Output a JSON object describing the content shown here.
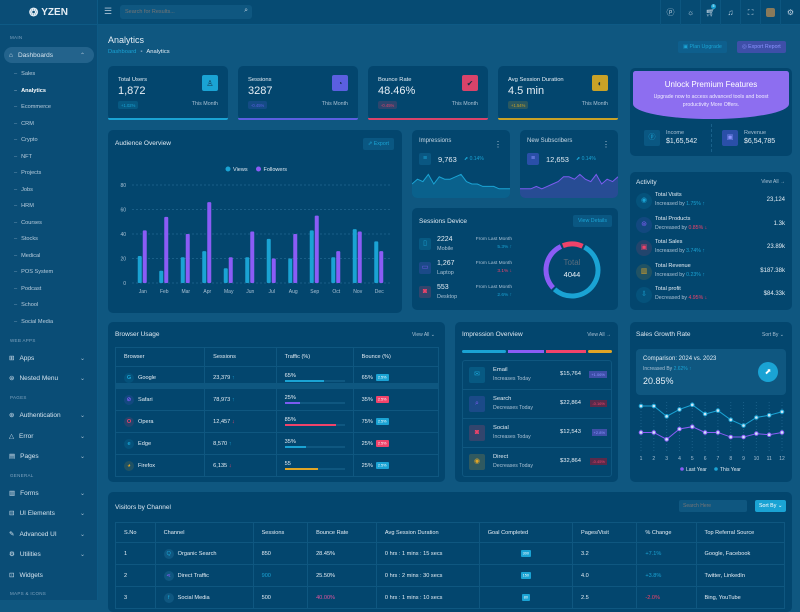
{
  "brand": {
    "name": "YZEN"
  },
  "search": {
    "placeholder": "Search for Results..."
  },
  "header": {
    "cart_badge": "5",
    "icons": [
      "help-icon",
      "sun-icon",
      "cart-icon",
      "bell-icon",
      "fullscreen-icon",
      "avatar",
      "gear-icon"
    ]
  },
  "sidebar": {
    "main_label": "MAIN",
    "dashboards": "Dashboards",
    "sub_items": [
      "Sales",
      "Analytics",
      "Ecommerce",
      "CRM",
      "Crypto",
      "NFT",
      "Projects",
      "Jobs",
      "HRM",
      "Courses",
      "Stocks",
      "Medical",
      "POS System",
      "Podcast",
      "School",
      "Social Media"
    ],
    "active_sub": "Analytics",
    "web_apps_label": "WEB APPS",
    "pages_label": "PAGES",
    "general_label": "GENERAL",
    "maps_label": "MAPS & ICONS",
    "groups": [
      {
        "label": "Apps",
        "icon": "grid-icon"
      },
      {
        "label": "Nested Menu",
        "icon": "layers-icon"
      },
      {
        "label": "Authentication",
        "icon": "user-icon"
      },
      {
        "label": "Error",
        "icon": "warning-icon"
      },
      {
        "label": "Pages",
        "icon": "file-icon"
      },
      {
        "label": "Forms",
        "icon": "form-icon"
      },
      {
        "label": "UI Elements",
        "icon": "box-icon"
      },
      {
        "label": "Advanced UI",
        "icon": "pen-icon"
      },
      {
        "label": "Utilities",
        "icon": "tool-icon"
      },
      {
        "label": "Widgets",
        "icon": "gift-icon"
      }
    ]
  },
  "page": {
    "title": "Analytics",
    "breadcrumb": [
      "Dashboard",
      "Analytics"
    ],
    "plan_upgrade": "Plan Upgrade",
    "export_report": "Export Report"
  },
  "stats": [
    {
      "label": "Total Users",
      "value": "1,872",
      "change": "+1.02%",
      "period": "This Month",
      "color": "#1aa3d4",
      "icon": "user-icon"
    },
    {
      "label": "Sessions",
      "value": "3287",
      "change": "-0.45%",
      "period": "This Month",
      "color": "#5b5fe0",
      "icon": "stopwatch-icon"
    },
    {
      "label": "Bounce Rate",
      "value": "48.46%",
      "change": "-0.45%",
      "period": "This Month",
      "color": "#d9436a",
      "icon": "check-circle-icon"
    },
    {
      "label": "Avg Session Duration",
      "value": "4.5 min",
      "change": "+1.54%",
      "period": "This Month",
      "color": "#c9a227",
      "icon": "clock-icon"
    }
  ],
  "premium": {
    "title": "Unlock Premium Features",
    "text": "Upgrade now to access advanced tools and boost productivity More Offers.",
    "income_label": "Income",
    "income": "$1,65,542",
    "revenue_label": "Revenue",
    "revenue": "$6,54,785"
  },
  "audience": {
    "title": "Audience Overview",
    "export": "Export"
  },
  "impressions": {
    "title": "Impressions",
    "value": "9,763",
    "change": "0.14%"
  },
  "subscribers": {
    "title": "New Subscribers",
    "value": "12,653",
    "change": "0.14%"
  },
  "sessions_device": {
    "title": "Sessions Device",
    "view_details": "View Details",
    "total_label": "Total",
    "total": "4044",
    "devices": [
      {
        "value": "2224",
        "name": "Mobile",
        "from": "From Last Month",
        "change": "5.3%",
        "dir": "up",
        "color": "#1aa3d4",
        "icon": "mobile-icon"
      },
      {
        "value": "1,267",
        "name": "Laptop",
        "from": "From Last Month",
        "change": "3.1%",
        "dir": "down",
        "color": "#7b5cf0",
        "icon": "laptop-icon"
      },
      {
        "value": "553",
        "name": "Desktop",
        "from": "From Last Month",
        "change": "2.6%",
        "dir": "up",
        "color": "#f0436a",
        "icon": "desktop-icon"
      }
    ]
  },
  "activity": {
    "title": "Activity",
    "view_all": "View All →",
    "items": [
      {
        "title": "Total Visits",
        "sub": "Increased by",
        "pct": "1.75%",
        "dir": "up",
        "value": "23,124",
        "color": "#1aa3d4"
      },
      {
        "title": "Total Products",
        "sub": "Decreased by",
        "pct": "0.85%",
        "dir": "down",
        "value": "1.3k",
        "color": "#7b5cf0"
      },
      {
        "title": "Total Sales",
        "sub": "Increased by",
        "pct": "3.74%",
        "dir": "up",
        "value": "23.89k",
        "color": "#f0436a"
      },
      {
        "title": "Total Revenue",
        "sub": "Increased by",
        "pct": "0.23%",
        "dir": "up",
        "value": "$187.38k",
        "color": "#e0a526"
      },
      {
        "title": "Total profit",
        "sub": "Decreased by",
        "pct": "4.95%",
        "dir": "down",
        "value": "$84.33k",
        "color": "#1aa3d4"
      }
    ]
  },
  "browser": {
    "title": "Browser Usage",
    "view_all": "View All",
    "headers": [
      "Browser",
      "Sessions",
      "Traffic (%)",
      "Bounce (%)"
    ],
    "rows": [
      {
        "name": "Google",
        "sessions": "23,379",
        "dir": "up",
        "traffic": "65%",
        "traffic_pct": 65,
        "bar": "#1aa3d4",
        "bounce": "65%",
        "badge": "2.5%",
        "badge_color": "#1aa3d4"
      },
      {
        "name": "Safari",
        "sessions": "78,973",
        "dir": "up",
        "traffic": "25%",
        "traffic_pct": 25,
        "bar": "#7b5cf0",
        "bounce": "35%",
        "badge": "2.5%",
        "badge_color": "#f0436a"
      },
      {
        "name": "Opera",
        "sessions": "12,457",
        "dir": "down",
        "traffic": "85%",
        "traffic_pct": 85,
        "bar": "#f0436a",
        "bounce": "75%",
        "badge": "2.5%",
        "badge_color": "#1aa3d4"
      },
      {
        "name": "Edge",
        "sessions": "8,570",
        "dir": "up",
        "traffic": "35%",
        "traffic_pct": 35,
        "bar": "#1aa3d4",
        "bounce": "25%",
        "badge": "2.5%",
        "badge_color": "#f0436a"
      },
      {
        "name": "Firefox",
        "sessions": "6,135",
        "dir": "down",
        "traffic": "55",
        "traffic_pct": 55,
        "bar": "#e0a526",
        "bounce": "25%",
        "badge": "2.5%",
        "badge_color": "#1aa3d4"
      }
    ]
  },
  "impression_overview": {
    "title": "Impression Overview",
    "view_all": "View All →",
    "items": [
      {
        "name": "Email",
        "sub": "Increases Today",
        "value": "$15,764",
        "badge": "+1.06%",
        "color": "#1aa3d4"
      },
      {
        "name": "Search",
        "sub": "Decreases Today",
        "value": "$22,864",
        "badge": "-0.16%",
        "color": "#7b5cf0"
      },
      {
        "name": "Social",
        "sub": "Increases Today",
        "value": "$12,543",
        "badge": "+2.8%",
        "color": "#f0436a"
      },
      {
        "name": "Direct",
        "sub": "Decreases Today",
        "value": "$32,864",
        "badge": "-0.45%",
        "color": "#e0a526"
      }
    ]
  },
  "sales_growth": {
    "title": "Sales Growth Rate",
    "sort_by": "Sort By",
    "comparison": "Comparison: 2024 vs. 2023",
    "increased_by": "Increased By",
    "increase": "2.62%",
    "value": "20.85%"
  },
  "visitors": {
    "title": "Visitors by Channel",
    "search_placeholder": "Search Here",
    "sort_by": "Sort By",
    "headers": [
      "S.No",
      "Channel",
      "Sessions",
      "Bounce Rate",
      "Avg Session Duration",
      "Goal Completed",
      "Pages/Visit",
      "% Change",
      "Top Referral Source"
    ],
    "rows": [
      {
        "no": "1",
        "channel": "Organic Search",
        "sessions": "850",
        "bounce": "28.45%",
        "duration": "0 hrs : 1 mins : 15 secs",
        "goal": "300",
        "pages": "3.2",
        "change": "+7.1%",
        "source": "Google, Facebook"
      },
      {
        "no": "2",
        "channel": "Direct Traffic",
        "sessions": "900",
        "bounce": "25.50%",
        "duration": "0 hrs : 2 mins : 30 secs",
        "goal": "150",
        "pages": "4.0",
        "change": "+3.8%",
        "source": "Twitter, LinkedIn"
      },
      {
        "no": "3",
        "channel": "Social Media",
        "sessions": "500",
        "bounce": "40.00%",
        "duration": "0 hrs : 1 mins : 10 secs",
        "goal": "80",
        "pages": "2.5",
        "change": "-2.0%",
        "source": "Bing, YouTube"
      }
    ]
  },
  "chart_data": [
    {
      "type": "bar",
      "categories": [
        "Jan",
        "Feb",
        "Mar",
        "Apr",
        "May",
        "Jun",
        "Jul",
        "Aug",
        "Sep",
        "Oct",
        "Nov",
        "Dec"
      ],
      "series": [
        {
          "name": "Views",
          "color": "#1aa3d4",
          "values": [
            22,
            10,
            21,
            26,
            12,
            21,
            36,
            20,
            43,
            21,
            44,
            34
          ]
        },
        {
          "name": "Followers",
          "color": "#8b5cf6",
          "values": [
            43,
            54,
            40,
            66,
            21,
            42,
            20,
            40,
            55,
            26,
            42,
            26
          ]
        }
      ],
      "yticks": [
        0,
        20,
        40,
        60,
        80
      ],
      "ylim": [
        0,
        80
      ],
      "legend": "top",
      "grid": true
    },
    {
      "type": "area",
      "name": "Impressions",
      "values": [
        5,
        7,
        6,
        9,
        5,
        8,
        7,
        7,
        8,
        9,
        6,
        5,
        5,
        4,
        4,
        4,
        3,
        3,
        3
      ],
      "color": "#1aa3d4"
    },
    {
      "type": "area",
      "name": "New Subscribers",
      "values": [
        3,
        3,
        3,
        4,
        3,
        4,
        5,
        6,
        8,
        8,
        7,
        9,
        7,
        6,
        9,
        5,
        7,
        6,
        8
      ],
      "color": "#7b5cf0"
    },
    {
      "type": "pie",
      "donut": true,
      "categories": [
        "Mobile",
        "Laptop",
        "Desktop"
      ],
      "values": [
        2224,
        1267,
        553
      ],
      "colors": [
        "#1aa3d4",
        "#8b5cf6",
        "#f0436a"
      ]
    },
    {
      "type": "line",
      "categories": [
        "1",
        "2",
        "3",
        "4",
        "5",
        "6",
        "7",
        "8",
        "9",
        "10",
        "11",
        "12"
      ],
      "series": [
        {
          "name": "Last Year",
          "color": "#8b5cf6",
          "values": [
            17,
            17,
            11,
            20,
            22,
            17,
            17,
            13,
            13,
            16,
            15,
            17
          ]
        },
        {
          "name": "This Year",
          "color": "#1aa3d4",
          "values": [
            40,
            40,
            31,
            37,
            41,
            33,
            36,
            28,
            23,
            30,
            32,
            35
          ]
        }
      ],
      "legend": "bottom",
      "grid": true
    }
  ]
}
